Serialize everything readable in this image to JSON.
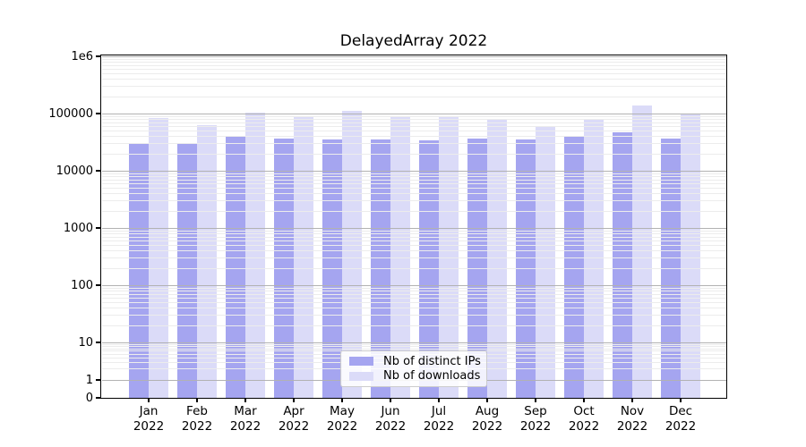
{
  "title": "DelayedArray 2022",
  "chart_data": {
    "type": "bar",
    "title": "DelayedArray 2022",
    "categories": [
      "Jan 2022",
      "Feb 2022",
      "Mar 2022",
      "Apr 2022",
      "May 2022",
      "Jun 2022",
      "Jul 2022",
      "Aug 2022",
      "Sep 2022",
      "Oct 2022",
      "Nov 2022",
      "Dec 2022"
    ],
    "category_months": [
      "Jan",
      "Feb",
      "Mar",
      "Apr",
      "May",
      "Jun",
      "Jul",
      "Aug",
      "Sep",
      "Oct",
      "Nov",
      "Dec"
    ],
    "category_year": "2022",
    "series": [
      {
        "name": "Nb of distinct IPs",
        "color": "#a5a5f0",
        "values": [
          30000,
          31000,
          40000,
          37000,
          35000,
          35000,
          34000,
          36000,
          35000,
          39000,
          47000,
          36000
        ]
      },
      {
        "name": "Nb of downloads",
        "color": "#dbdbf8",
        "values": [
          85000,
          63000,
          103000,
          91000,
          112000,
          90000,
          88000,
          81000,
          61000,
          80000,
          137000,
          97000
        ]
      }
    ],
    "xlabel": "",
    "ylabel": "",
    "y_axis": {
      "scale": "symlog",
      "ylim": [
        0,
        1000000
      ],
      "ticks": [
        0,
        1,
        10,
        100,
        1000,
        10000,
        100000,
        1000000
      ],
      "tick_labels": [
        "0",
        "1",
        "10",
        "100",
        "1000",
        "10000",
        "100000",
        "1e6"
      ]
    },
    "grid": {
      "horizontal": true,
      "major_color": "#b2b2b2",
      "minor_color": "#ececec",
      "above_bars": true
    },
    "legend": {
      "position": "lower center",
      "labels": [
        "Nb of distinct IPs",
        "Nb of downloads"
      ]
    }
  }
}
